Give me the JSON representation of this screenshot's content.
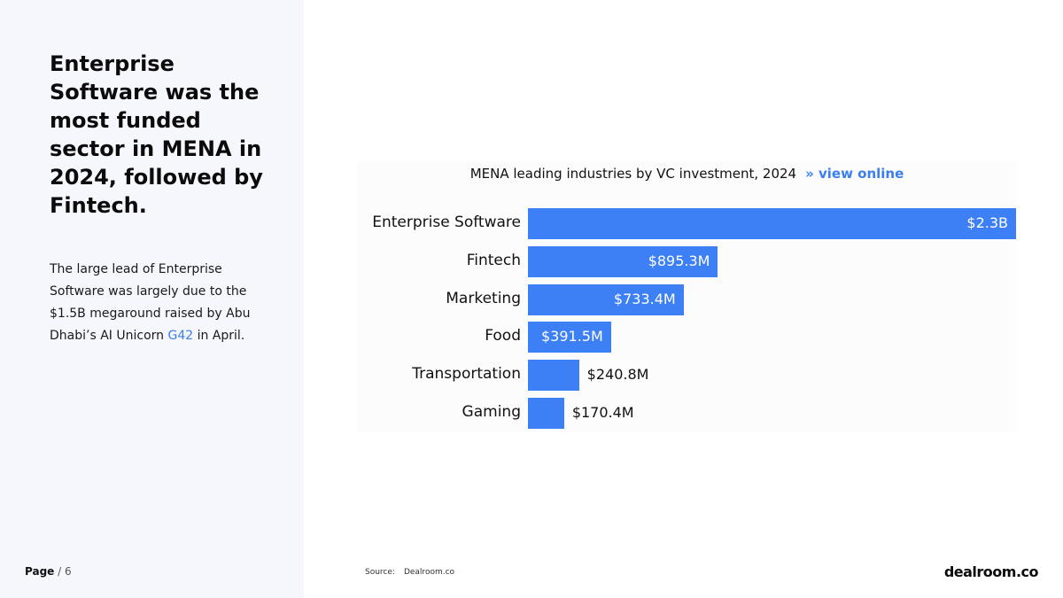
{
  "headline": "Enterprise Software was the most funded sector in MENA in 2024, followed by Fintech.",
  "body": {
    "before_link": "The large lead of Enterprise Software was largely due to the $1.5B megaround raised by Abu Dhabi’s AI Unicorn ",
    "link_text": "G42",
    "after_link": " in April."
  },
  "footer": {
    "page_word": "Page",
    "page_rest": " / 6",
    "source_label": "Source:",
    "source_name": "Dealroom.co",
    "logo": "dealroom.co"
  },
  "colors": {
    "bar": "#3d7ff5",
    "link": "#3a7ff0",
    "panel": "#f6f7fc"
  },
  "chart_data": {
    "type": "bar",
    "orientation": "horizontal",
    "title": "MENA leading industries by VC investment, 2024",
    "view_online": "» view online",
    "categories": [
      "Enterprise Software",
      "Fintech",
      "Marketing",
      "Food",
      "Transportation",
      "Gaming"
    ],
    "values": [
      2300,
      895.3,
      733.4,
      391.5,
      240.8,
      170.4
    ],
    "unit": "$M",
    "value_labels": [
      "$2.3B",
      "$895.3M",
      "$733.4M",
      "$391.5M",
      "$240.8M",
      "$170.4M"
    ],
    "xlabel": "",
    "ylabel": "",
    "xlim": [
      0,
      2300
    ]
  }
}
